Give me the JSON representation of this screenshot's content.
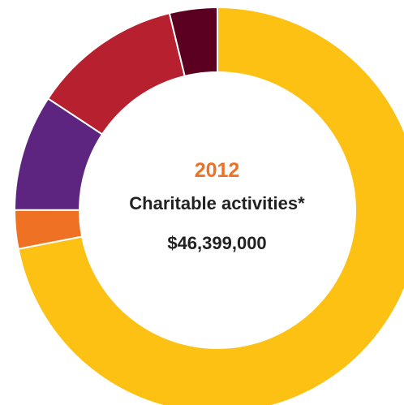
{
  "chart_data": {
    "type": "pie",
    "donut": true,
    "center": {
      "year": "2012",
      "caption": "Charitable activities*",
      "total": "$46,399,000"
    },
    "slices": [
      {
        "value": 70.0,
        "color": "#fcc113"
      },
      {
        "value": 3.0,
        "color": "#ef7123"
      },
      {
        "value": 9.0,
        "color": "#5e2580"
      },
      {
        "value": 11.6,
        "color": "#b6202f"
      },
      {
        "value": 3.7,
        "color": "#5c0022"
      }
    ]
  }
}
